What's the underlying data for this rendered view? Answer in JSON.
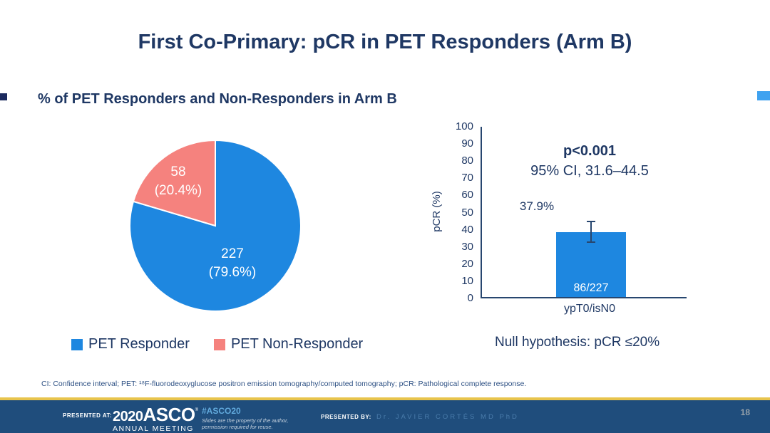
{
  "slide": {
    "title": "First Co-Primary: pCR in PET Responders (Arm B)",
    "subtitle": "% of PET Responders and Non-Responders in Arm B",
    "footnote": "CI: Confidence interval; PET: ¹⁸F-fluorodeoxyglucose positron emission tomography/computed tomography; pCR: Pathological complete response.",
    "page_number": "18"
  },
  "chart_data": [
    {
      "type": "pie",
      "title": "% of PET Responders and Non-Responders in Arm B",
      "start_angle_deg": 0,
      "direction": "clockwise",
      "slices": [
        {
          "name": "pet-responder",
          "label": "PET Responder",
          "value": 227,
          "percent": 79.6,
          "count_label": "227",
          "percent_label": "(79.6%)",
          "color": "#1e87e0"
        },
        {
          "name": "pet-non-responder",
          "label": "PET Non-Responder",
          "value": 58,
          "percent": 20.4,
          "count_label": "58",
          "percent_label": "(20.4%)",
          "color": "#f5827e"
        }
      ],
      "legend_position": "bottom"
    },
    {
      "type": "bar",
      "categories": [
        "ypT0/isN0"
      ],
      "values": [
        37.9
      ],
      "series_color": "#1e87e0",
      "bar_value_label": "37.9%",
      "bar_inner_label": "86/227",
      "error_bar": {
        "low": 31.6,
        "high": 44.5
      },
      "p_value_label": "p<0.001",
      "ci_label": "95% CI, 31.6–44.5",
      "ylabel": "pCR (%)",
      "ylim": [
        0,
        100
      ],
      "ytick_step": 10,
      "grid": false,
      "note": "Null hypothesis: pCR ≤20%"
    }
  ],
  "legend": {
    "items": [
      {
        "label": "PET Responder",
        "color": "#1e87e0"
      },
      {
        "label": "PET Non-Responder",
        "color": "#f5827e"
      }
    ]
  },
  "footer": {
    "presented_at_label": "PRESENTED AT:",
    "logo_year": "2020",
    "logo_name": "ASCO",
    "logo_tm": "®",
    "logo_subtitle": "ANNUAL MEETING",
    "hashtag": "#ASCO20",
    "permission_line1": "Slides are the property of the author,",
    "permission_line2": "permission required for reuse.",
    "presented_by_label": "PRESENTED BY:",
    "presenter": "Dr. JAVIER CORTÉS MD PhD",
    "colors": {
      "bar": "#1f4d7c",
      "gold": "#e8c44d",
      "hashtag": "#62aadd",
      "presenter": "#4a7cab"
    }
  }
}
